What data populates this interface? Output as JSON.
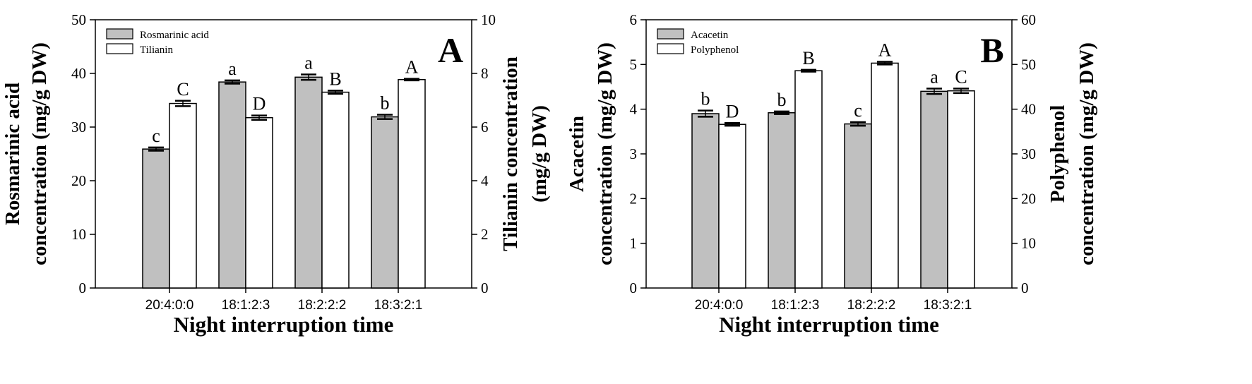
{
  "chart_data": [
    {
      "type": "bar",
      "panel_label": "A",
      "xlabel": "Night interruption time",
      "categories": [
        "20:4:0:0",
        "18:1:2:3",
        "18:2:2:2",
        "18:3:2:1"
      ],
      "ylabel_left": [
        "Rosmarinic acid",
        "concentration (mg/g DW)"
      ],
      "ylabel_right": [
        "Tilianin concentration",
        "(mg/g DW)"
      ],
      "ylim_left": [
        0,
        50
      ],
      "yticks_left": [
        0,
        10,
        20,
        30,
        40,
        50
      ],
      "ylim_right": [
        0,
        10
      ],
      "yticks_right": [
        0,
        2,
        4,
        6,
        8,
        10
      ],
      "legend_position": "top-left",
      "series": [
        {
          "name": "Rosmarinic acid",
          "axis": "left",
          "color": "#c0c0c0",
          "values": [
            25.9,
            38.4,
            39.3,
            31.9
          ],
          "errors": [
            0.3,
            0.3,
            0.5,
            0.4
          ],
          "letters": [
            "c",
            "a",
            "a",
            "b"
          ]
        },
        {
          "name": "Tilianin",
          "axis": "right",
          "color": "#ffffff",
          "values": [
            6.88,
            6.35,
            7.3,
            7.77
          ],
          "errors": [
            0.1,
            0.08,
            0.06,
            0.03
          ],
          "letters": [
            "C",
            "D",
            "B",
            "A"
          ]
        }
      ]
    },
    {
      "type": "bar",
      "panel_label": "B",
      "xlabel": "Night interruption time",
      "categories": [
        "20:4:0:0",
        "18:1:2:3",
        "18:2:2:2",
        "18:3:2:1"
      ],
      "ylabel_left": [
        "Acacetin",
        "concentration (mg/g DW)"
      ],
      "ylabel_right": [
        "Polyphenol",
        "concentration (mg/g DW)"
      ],
      "ylim_left": [
        0,
        6
      ],
      "yticks_left": [
        0,
        1,
        2,
        3,
        4,
        5,
        6
      ],
      "ylim_right": [
        0,
        60
      ],
      "yticks_right": [
        0,
        10,
        20,
        30,
        40,
        50,
        60
      ],
      "legend_position": "top-left",
      "series": [
        {
          "name": "Acacetin",
          "axis": "left",
          "color": "#c0c0c0",
          "values": [
            3.9,
            3.92,
            3.67,
            4.4
          ],
          "errors": [
            0.07,
            0.03,
            0.04,
            0.06
          ],
          "letters": [
            "b",
            "b",
            "c",
            "a"
          ]
        },
        {
          "name": "Polyphenol",
          "axis": "right",
          "color": "#ffffff",
          "values": [
            36.6,
            48.6,
            50.3,
            44.1
          ],
          "errors": [
            0.3,
            0.2,
            0.3,
            0.5
          ],
          "letters": [
            "D",
            "B",
            "A",
            "C"
          ]
        }
      ]
    }
  ]
}
